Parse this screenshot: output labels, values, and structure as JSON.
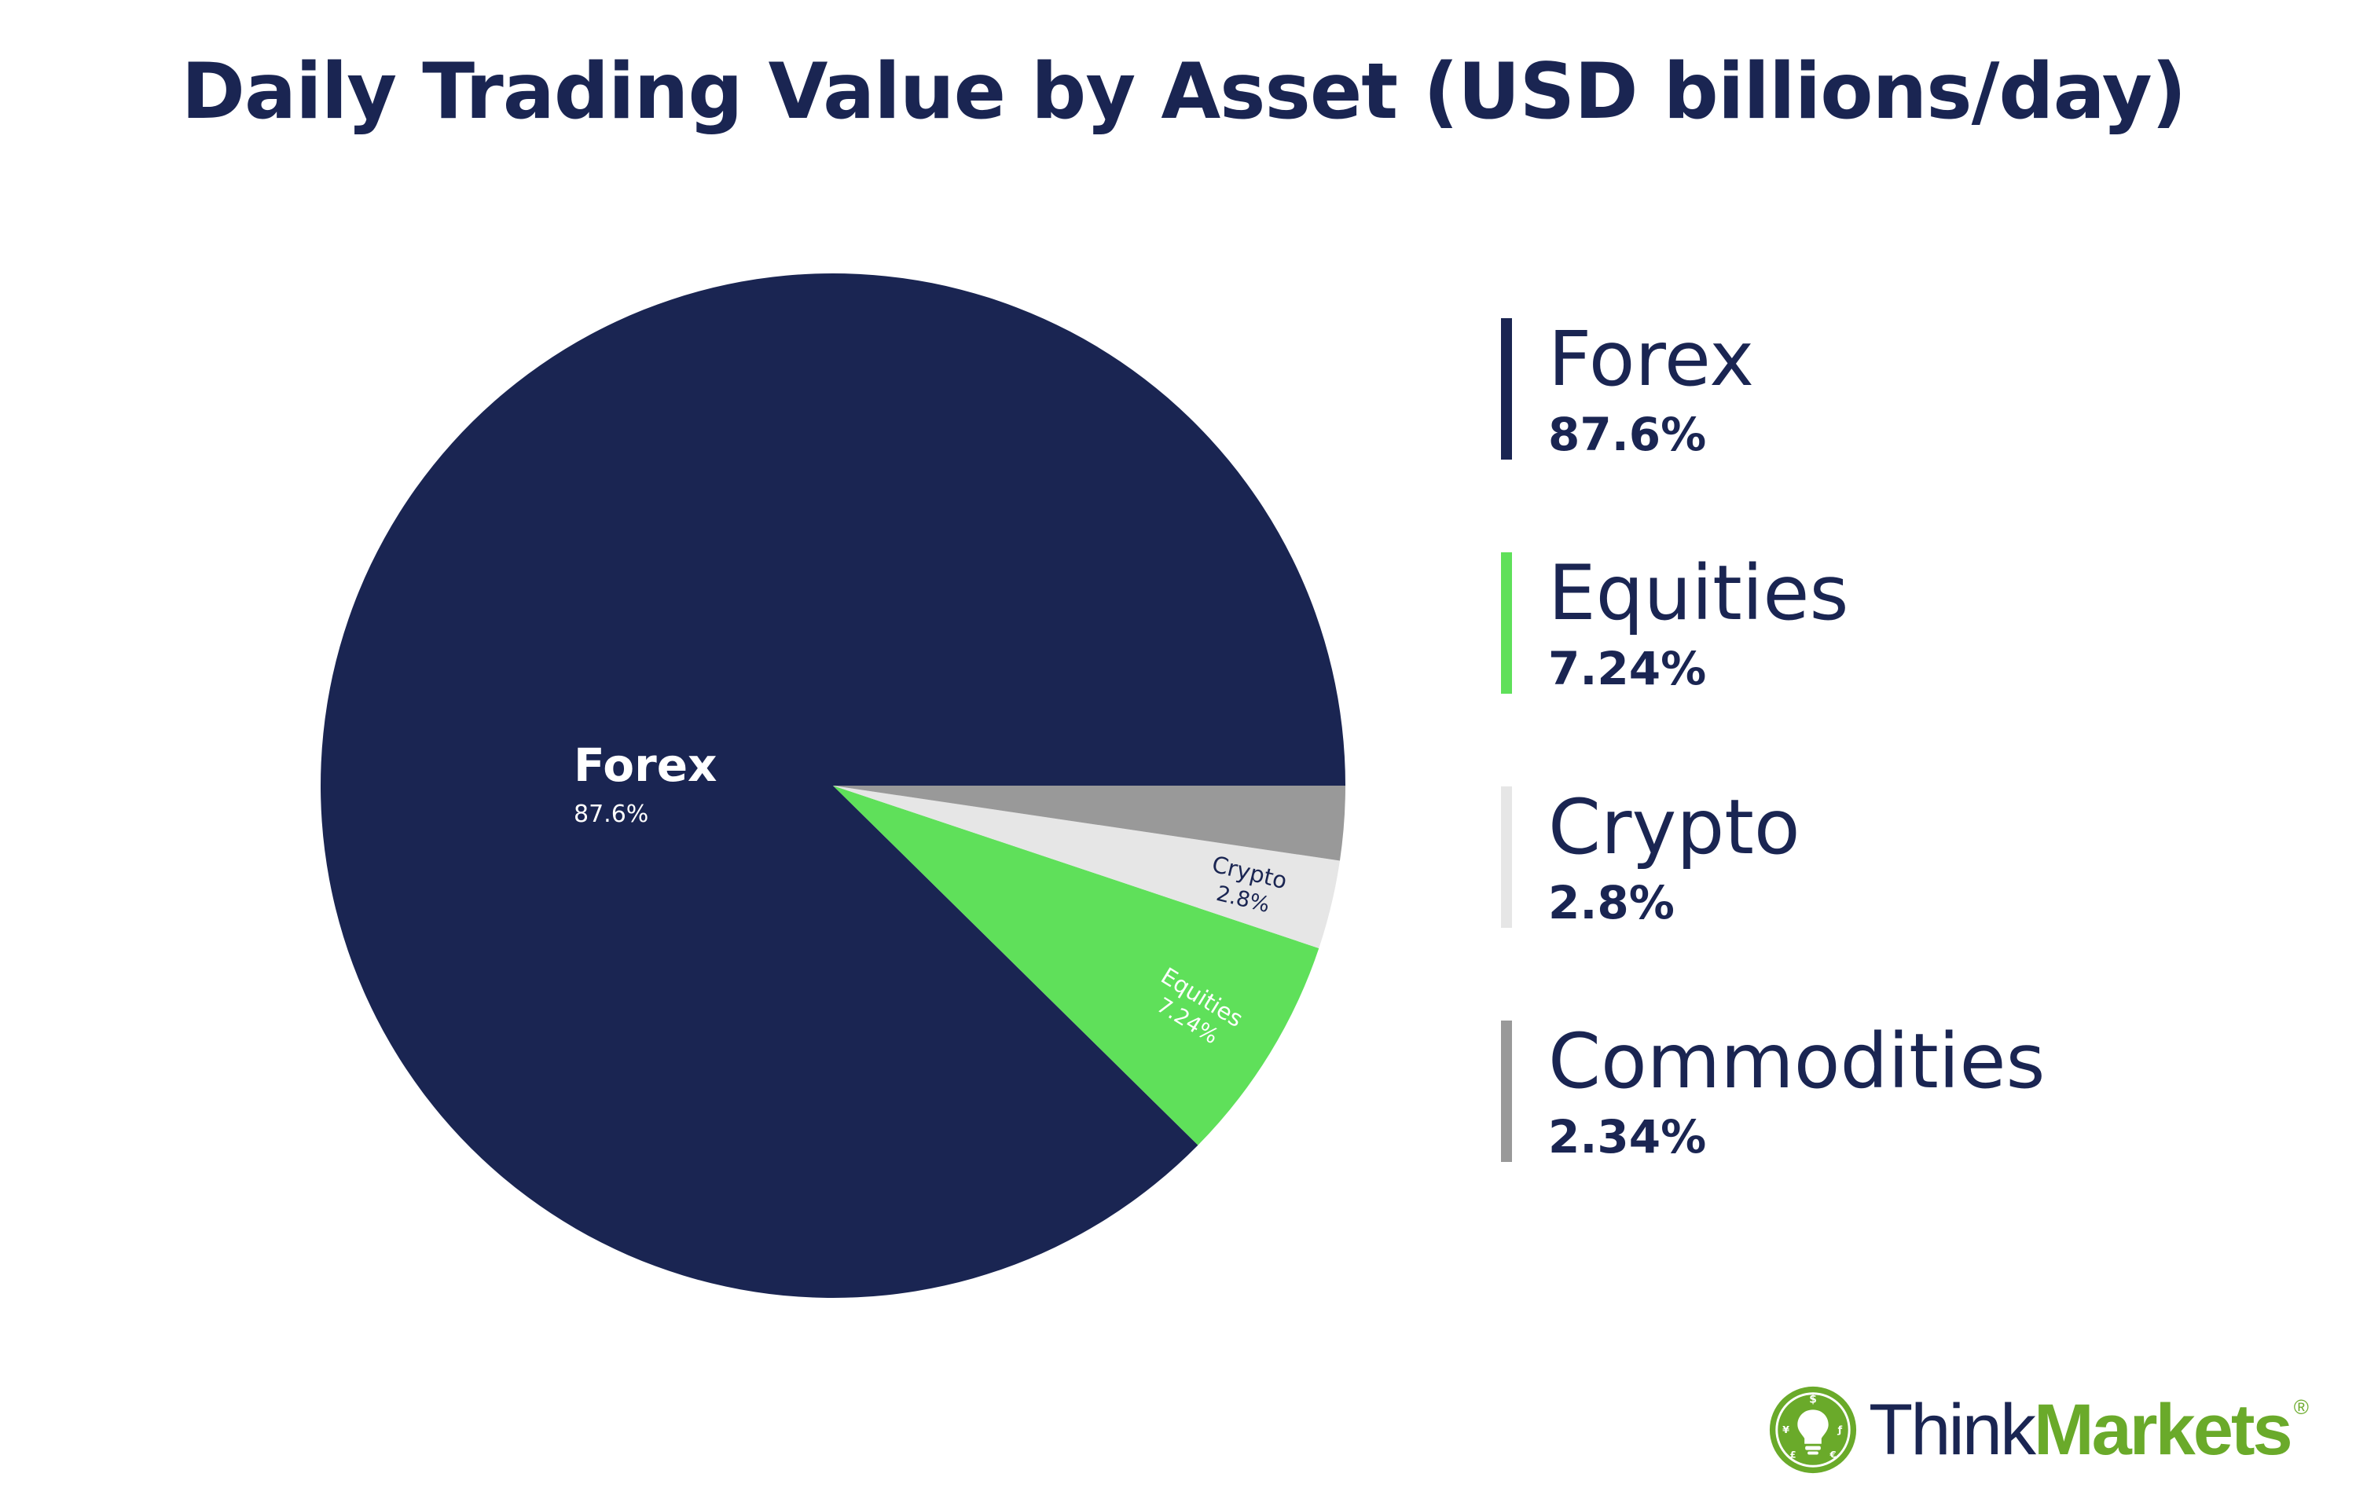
{
  "chart_data": {
    "type": "pie",
    "title": "Daily Trading Value by Asset (USD billions/day)",
    "slices": [
      {
        "name": "Forex",
        "value": 87.6,
        "label": "87.6%",
        "color": "#1a2552",
        "label_color": "#ffffff"
      },
      {
        "name": "Equities",
        "value": 7.24,
        "label": "7.24%",
        "color": "#5fe05a",
        "label_color": "#ffffff"
      },
      {
        "name": "Crypto",
        "value": 2.8,
        "label": "2.8%",
        "color": "#e6e6e6",
        "label_color": "#1a2552"
      },
      {
        "name": "Commodities",
        "value": 2.34,
        "label": "2.34%",
        "color": "#999999",
        "label_color": "#1a2552"
      }
    ],
    "start_angle_deg": 0,
    "direction": "counterclockwise",
    "legend_position": "right"
  },
  "legend": {
    "items": [
      {
        "name": "Forex",
        "value": "87.6%",
        "color": "#1a2552"
      },
      {
        "name": "Equities",
        "value": "7.24%",
        "color": "#5fe05a"
      },
      {
        "name": "Crypto",
        "value": "2.8%",
        "color": "#e6e6e6"
      },
      {
        "name": "Commodities",
        "value": "2.34%",
        "color": "#999999"
      }
    ]
  },
  "logo": {
    "think": "Think",
    "markets": "Markets",
    "registered": "®",
    "icon": "lightbulb-currency-icon",
    "colors": {
      "dark": "#1a2552",
      "green": "#6aaa2a"
    }
  }
}
